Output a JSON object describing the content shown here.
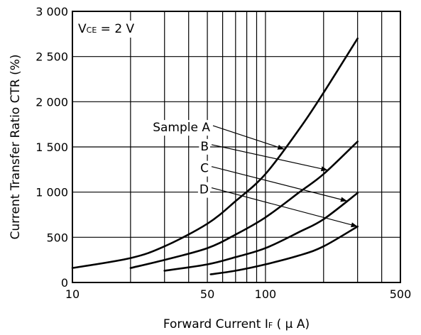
{
  "chart_data": {
    "type": "line",
    "title": "",
    "xlabel": "Forward Current  I",
    "xlabel_sub": "F",
    "xlabel_unit": " ( μ A)",
    "ylabel": "Current Transfer Ratio  CTR (%)",
    "x_scale": "log",
    "xlim": [
      10,
      500
    ],
    "ylim": [
      0,
      3000
    ],
    "grid": true,
    "x_tick_labels": [
      {
        "value": 10,
        "label": "10"
      },
      {
        "value": 50,
        "label": "50"
      },
      {
        "value": 100,
        "label": "100"
      },
      {
        "value": 500,
        "label": "500"
      }
    ],
    "x_grid_values": [
      10,
      20,
      30,
      40,
      50,
      60,
      70,
      80,
      90,
      100,
      200,
      300,
      400,
      500
    ],
    "y_tick_labels": [
      {
        "value": 0,
        "label": "0"
      },
      {
        "value": 500,
        "label": "500"
      },
      {
        "value": 1000,
        "label": "1 000"
      },
      {
        "value": 1500,
        "label": "1 500"
      },
      {
        "value": 2000,
        "label": "2 000"
      },
      {
        "value": 2500,
        "label": "2 500"
      },
      {
        "value": 3000,
        "label": "3 000"
      }
    ],
    "condition": {
      "prefix": "V",
      "sub": "CE",
      "suffix": " = 2 V"
    },
    "series": [
      {
        "name": "Sample A",
        "x": [
          10,
          20,
          30,
          50,
          70,
          100,
          150,
          200,
          300
        ],
        "y": [
          160,
          270,
          400,
          650,
          900,
          1200,
          1700,
          2100,
          2700
        ]
      },
      {
        "name": "B",
        "x": [
          20,
          30,
          50,
          70,
          100,
          150,
          200,
          300
        ],
        "y": [
          160,
          250,
          380,
          530,
          720,
          1000,
          1200,
          1560
        ]
      },
      {
        "name": "C",
        "x": [
          30,
          50,
          70,
          100,
          150,
          200,
          300
        ],
        "y": [
          130,
          200,
          280,
          380,
          560,
          700,
          990
        ]
      },
      {
        "name": "D",
        "x": [
          52,
          70,
          100,
          150,
          200,
          300
        ],
        "y": [
          90,
          130,
          200,
          300,
          400,
          620
        ]
      }
    ]
  },
  "colors": {
    "line": "#000000",
    "grid": "#000000",
    "background": "#ffffff"
  }
}
